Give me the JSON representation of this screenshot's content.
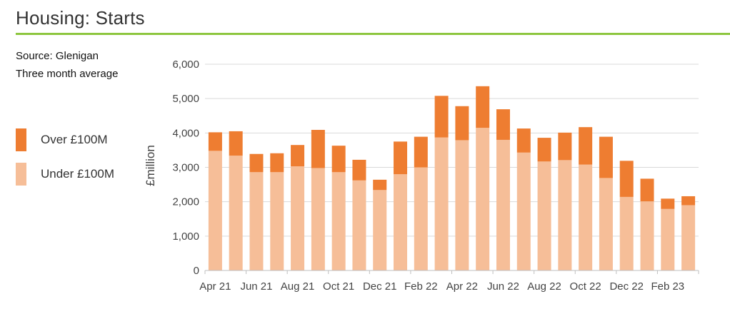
{
  "header": {
    "title": "Housing: Starts"
  },
  "source": {
    "line1": "Source: Glenigan",
    "line2": "Three month average"
  },
  "colors": {
    "over": "#ee7d31",
    "under": "#f6be98",
    "rule": "#8dc63f",
    "grid": "#d9d9d9"
  },
  "legend": [
    {
      "label": "Over £100M",
      "color": "#ee7d31"
    },
    {
      "label": "Under £100M",
      "color": "#f6be98"
    }
  ],
  "chart_data": {
    "type": "bar",
    "stacked": true,
    "title": "Housing: Starts",
    "ylabel": "£million",
    "ylim": [
      0,
      6000
    ],
    "yticks": [
      0,
      1000,
      2000,
      3000,
      4000,
      5000,
      6000
    ],
    "ytick_labels": [
      "0",
      "1,000",
      "2,000",
      "3,000",
      "4,000",
      "5,000",
      "6,000"
    ],
    "categories": [
      "Apr 21",
      "May 21",
      "Jun 21",
      "Jul 21",
      "Aug 21",
      "Sep 21",
      "Oct 21",
      "Nov 21",
      "Dec 21",
      "Jan 22",
      "Feb 22",
      "Mar 22",
      "Apr 22",
      "May 22",
      "Jun 22",
      "Jul 22",
      "Aug 22",
      "Sep 22",
      "Oct 22",
      "Nov 22",
      "Dec 22",
      "Jan 23",
      "Feb 23",
      "Mar 23"
    ],
    "xtick_labels": [
      "Apr 21",
      "Jun 21",
      "Aug 21",
      "Oct 21",
      "Dec 21",
      "Feb 22",
      "Apr 22",
      "Jun 22",
      "Aug 22",
      "Oct 22",
      "Dec 22",
      "Feb 23"
    ],
    "series": [
      {
        "name": "Under £100M",
        "values": [
          3480,
          3340,
          2860,
          2860,
          3030,
          2980,
          2860,
          2620,
          2340,
          2800,
          3000,
          3870,
          3790,
          4150,
          3800,
          3430,
          3170,
          3210,
          3080,
          2690,
          2140,
          2010,
          1790,
          1900
        ]
      },
      {
        "name": "Over £100M",
        "values": [
          540,
          710,
          530,
          550,
          620,
          1110,
          770,
          600,
          300,
          950,
          890,
          1210,
          990,
          1210,
          890,
          700,
          690,
          800,
          1090,
          1200,
          1050,
          660,
          300,
          260
        ]
      }
    ],
    "grid": true,
    "legend_position": "left"
  }
}
